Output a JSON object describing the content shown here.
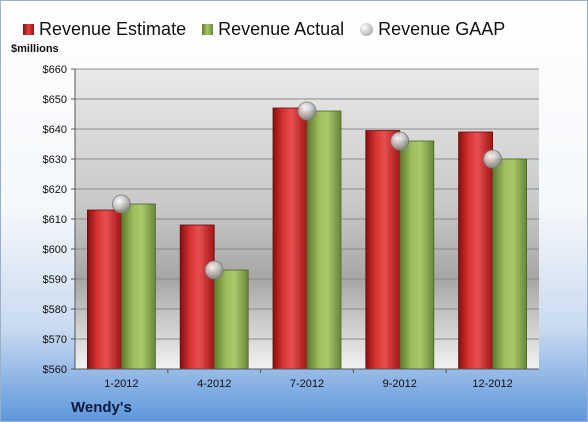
{
  "chart_data": {
    "type": "bar",
    "categories": [
      "1-2012",
      "4-2012",
      "7-2012",
      "9-2012",
      "12-2012"
    ],
    "series": [
      {
        "name": "Revenue Estimate",
        "values": [
          613,
          608,
          647,
          639.5,
          639
        ],
        "color": "#c82020",
        "style": "bar"
      },
      {
        "name": "Revenue Actual",
        "values": [
          615,
          593,
          646,
          636,
          630
        ],
        "color": "#8aab4e",
        "style": "bar"
      },
      {
        "name": "Revenue GAAP",
        "values": [
          615,
          593,
          646,
          636,
          630
        ],
        "color": "#c0c0c0",
        "style": "marker"
      }
    ],
    "ylabel": "$millions",
    "ylim": [
      560,
      660
    ],
    "yticks": [
      560,
      570,
      580,
      590,
      600,
      610,
      620,
      630,
      640,
      650,
      660
    ],
    "ytick_labels": [
      "$560",
      "$570",
      "$580",
      "$590",
      "$600",
      "$610",
      "$620",
      "$630",
      "$640",
      "$650",
      "$660"
    ],
    "grid": true,
    "legend_position": "top",
    "company": "Wendy's"
  },
  "legend": {
    "estimate_label": "Revenue Estimate",
    "actual_label": "Revenue Actual",
    "gaap_label": "Revenue GAAP"
  },
  "unit_label": "$millions",
  "company": "Wendy's"
}
